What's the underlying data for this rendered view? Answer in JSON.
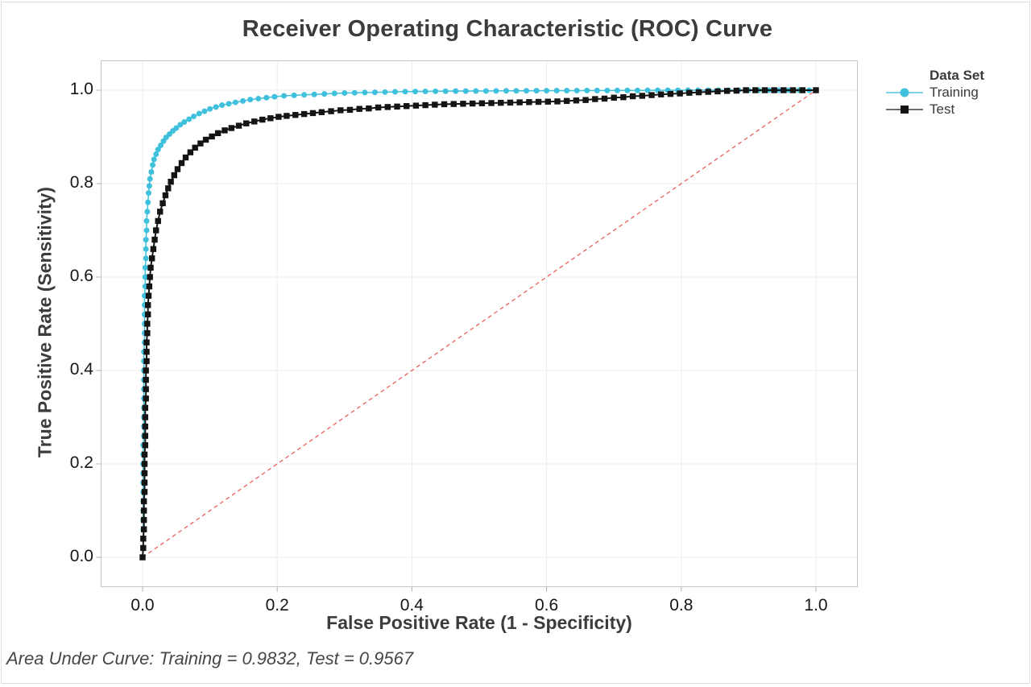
{
  "title": "Receiver Operating Characteristic (ROC) Curve",
  "footer": "Area Under Curve: Training = 0.9832, Test = 0.9567",
  "legend": {
    "title": "Data Set",
    "items": [
      {
        "label": "Training",
        "marker": "circle",
        "color": "#3fc0dd",
        "line_color": "#7fd4e8"
      },
      {
        "label": "Test",
        "marker": "square",
        "color": "#141414",
        "line_color": "#6e6e6e"
      }
    ]
  },
  "chart_data": {
    "type": "line",
    "title": "Receiver Operating Characteristic (ROC) Curve",
    "xlabel": "False Positive Rate (1 - Specificity)",
    "ylabel": "True Positive Rate (Sensitivity)",
    "xlim": [
      0,
      1
    ],
    "ylim": [
      0,
      1
    ],
    "grid": true,
    "legend_position": "right-top",
    "ticks": [
      0,
      0.2,
      0.4,
      0.6,
      0.8,
      1
    ],
    "x_tick_labels": [
      "0.0",
      "0.2",
      "0.4",
      "0.6",
      "0.8",
      "1.0"
    ],
    "y_tick_labels": [
      "0.0",
      "0.2",
      "0.4",
      "0.6",
      "0.8",
      "1.0"
    ],
    "colors": {
      "grid": "#ececec",
      "frame": "#c6c6c6",
      "tick": "#b0b0b0",
      "background": "#ffffff"
    },
    "reference_line": {
      "type": "diagonal",
      "style": "dashed",
      "color": "#ea5550",
      "from": [
        0,
        0
      ],
      "to": [
        1,
        1
      ]
    },
    "series": [
      {
        "name": "Training",
        "marker": "circle",
        "color": "#3fc0dd",
        "auc": 0.9832,
        "points": [
          [
            0,
            0
          ],
          [
            0.001,
            0.02
          ],
          [
            0.001,
            0.04
          ],
          [
            0.001,
            0.06
          ],
          [
            0.001,
            0.08
          ],
          [
            0.001,
            0.1
          ],
          [
            0.001,
            0.12
          ],
          [
            0.001,
            0.14
          ],
          [
            0.001,
            0.16
          ],
          [
            0.001,
            0.18
          ],
          [
            0.001,
            0.2
          ],
          [
            0.001,
            0.22
          ],
          [
            0.001,
            0.24
          ],
          [
            0.002,
            0.26
          ],
          [
            0.002,
            0.28
          ],
          [
            0.002,
            0.3
          ],
          [
            0.002,
            0.32
          ],
          [
            0.002,
            0.34
          ],
          [
            0.002,
            0.36
          ],
          [
            0.002,
            0.38
          ],
          [
            0.002,
            0.4
          ],
          [
            0.002,
            0.42
          ],
          [
            0.002,
            0.44
          ],
          [
            0.003,
            0.46
          ],
          [
            0.003,
            0.48
          ],
          [
            0.003,
            0.5
          ],
          [
            0.003,
            0.52
          ],
          [
            0.003,
            0.54
          ],
          [
            0.003,
            0.56
          ],
          [
            0.004,
            0.58
          ],
          [
            0.004,
            0.6
          ],
          [
            0.004,
            0.62
          ],
          [
            0.005,
            0.64
          ],
          [
            0.005,
            0.66
          ],
          [
            0.005,
            0.68
          ],
          [
            0.006,
            0.7
          ],
          [
            0.006,
            0.72
          ],
          [
            0.007,
            0.74
          ],
          [
            0.008,
            0.76
          ],
          [
            0.009,
            0.78
          ],
          [
            0.01,
            0.795
          ],
          [
            0.011,
            0.81
          ],
          [
            0.013,
            0.825
          ],
          [
            0.015,
            0.84
          ],
          [
            0.017,
            0.852
          ],
          [
            0.02,
            0.863
          ],
          [
            0.023,
            0.873
          ],
          [
            0.027,
            0.882
          ],
          [
            0.031,
            0.891
          ],
          [
            0.035,
            0.899
          ],
          [
            0.04,
            0.906
          ],
          [
            0.045,
            0.913
          ],
          [
            0.05,
            0.919
          ],
          [
            0.056,
            0.926
          ],
          [
            0.062,
            0.932
          ],
          [
            0.069,
            0.938
          ],
          [
            0.076,
            0.944
          ],
          [
            0.084,
            0.95
          ],
          [
            0.092,
            0.955
          ],
          [
            0.1,
            0.96
          ],
          [
            0.109,
            0.964
          ],
          [
            0.118,
            0.968
          ],
          [
            0.128,
            0.971
          ],
          [
            0.138,
            0.974
          ],
          [
            0.149,
            0.977
          ],
          [
            0.16,
            0.98
          ],
          [
            0.172,
            0.982
          ],
          [
            0.184,
            0.984
          ],
          [
            0.196,
            0.986
          ],
          [
            0.21,
            0.988
          ],
          [
            0.225,
            0.989
          ],
          [
            0.24,
            0.99
          ],
          [
            0.255,
            0.991
          ],
          [
            0.27,
            0.992
          ],
          [
            0.285,
            0.993
          ],
          [
            0.3,
            0.994
          ],
          [
            0.315,
            0.9945
          ],
          [
            0.33,
            0.995
          ],
          [
            0.345,
            0.9955
          ],
          [
            0.36,
            0.996
          ],
          [
            0.375,
            0.9965
          ],
          [
            0.39,
            0.997
          ],
          [
            0.405,
            0.9972
          ],
          [
            0.42,
            0.9974
          ],
          [
            0.435,
            0.9976
          ],
          [
            0.45,
            0.9978
          ],
          [
            0.465,
            0.998
          ],
          [
            0.48,
            0.9981
          ],
          [
            0.495,
            0.9982
          ],
          [
            0.51,
            0.9983
          ],
          [
            0.525,
            0.9984
          ],
          [
            0.54,
            0.9986
          ],
          [
            0.555,
            0.9987
          ],
          [
            0.57,
            0.9988
          ],
          [
            0.585,
            0.9989
          ],
          [
            0.6,
            0.999
          ],
          [
            0.615,
            0.9991
          ],
          [
            0.63,
            0.9992
          ],
          [
            0.645,
            0.9992
          ],
          [
            0.66,
            0.9993
          ],
          [
            0.675,
            0.9994
          ],
          [
            0.69,
            0.9994
          ],
          [
            0.705,
            0.9995
          ],
          [
            0.72,
            0.9996
          ],
          [
            0.735,
            0.9996
          ],
          [
            0.75,
            0.9997
          ],
          [
            0.765,
            0.9997
          ],
          [
            0.78,
            0.9998
          ],
          [
            0.795,
            0.9998
          ],
          [
            0.81,
            0.9999
          ],
          [
            0.825,
            0.9999
          ],
          [
            0.84,
            1
          ],
          [
            0.855,
            1
          ],
          [
            0.87,
            1
          ],
          [
            0.885,
            1
          ],
          [
            0.9,
            1
          ],
          [
            0.915,
            1
          ],
          [
            0.93,
            1
          ],
          [
            0.945,
            1
          ],
          [
            0.96,
            1
          ],
          [
            0.975,
            1
          ],
          [
            0.99,
            1
          ],
          [
            1,
            1
          ]
        ]
      },
      {
        "name": "Test",
        "marker": "square",
        "color": "#141414",
        "auc": 0.9567,
        "points": [
          [
            0,
            0
          ],
          [
            0.001,
            0.02
          ],
          [
            0.001,
            0.04
          ],
          [
            0.002,
            0.06
          ],
          [
            0.002,
            0.08
          ],
          [
            0.002,
            0.1
          ],
          [
            0.002,
            0.12
          ],
          [
            0.003,
            0.14
          ],
          [
            0.003,
            0.16
          ],
          [
            0.003,
            0.18
          ],
          [
            0.003,
            0.2
          ],
          [
            0.003,
            0.22
          ],
          [
            0.004,
            0.24
          ],
          [
            0.004,
            0.26
          ],
          [
            0.004,
            0.28
          ],
          [
            0.004,
            0.3
          ],
          [
            0.004,
            0.32
          ],
          [
            0.005,
            0.34
          ],
          [
            0.005,
            0.36
          ],
          [
            0.005,
            0.38
          ],
          [
            0.005,
            0.4
          ],
          [
            0.006,
            0.42
          ],
          [
            0.006,
            0.44
          ],
          [
            0.006,
            0.46
          ],
          [
            0.007,
            0.48
          ],
          [
            0.007,
            0.5
          ],
          [
            0.008,
            0.52
          ],
          [
            0.008,
            0.54
          ],
          [
            0.009,
            0.56
          ],
          [
            0.01,
            0.58
          ],
          [
            0.011,
            0.6
          ],
          [
            0.012,
            0.62
          ],
          [
            0.014,
            0.64
          ],
          [
            0.016,
            0.66
          ],
          [
            0.018,
            0.68
          ],
          [
            0.02,
            0.7
          ],
          [
            0.023,
            0.72
          ],
          [
            0.026,
            0.74
          ],
          [
            0.03,
            0.758
          ],
          [
            0.034,
            0.775
          ],
          [
            0.038,
            0.79
          ],
          [
            0.042,
            0.804
          ],
          [
            0.047,
            0.818
          ],
          [
            0.052,
            0.831
          ],
          [
            0.058,
            0.844
          ],
          [
            0.064,
            0.856
          ],
          [
            0.071,
            0.867
          ],
          [
            0.078,
            0.877
          ],
          [
            0.086,
            0.886
          ],
          [
            0.094,
            0.894
          ],
          [
            0.103,
            0.901
          ],
          [
            0.112,
            0.908
          ],
          [
            0.122,
            0.914
          ],
          [
            0.132,
            0.919
          ],
          [
            0.143,
            0.924
          ],
          [
            0.154,
            0.929
          ],
          [
            0.166,
            0.933
          ],
          [
            0.178,
            0.937
          ],
          [
            0.19,
            0.94
          ],
          [
            0.202,
            0.943
          ],
          [
            0.214,
            0.945
          ],
          [
            0.227,
            0.947
          ],
          [
            0.24,
            0.949
          ],
          [
            0.253,
            0.951
          ],
          [
            0.266,
            0.953
          ],
          [
            0.28,
            0.955
          ],
          [
            0.294,
            0.957
          ],
          [
            0.308,
            0.958
          ],
          [
            0.322,
            0.96
          ],
          [
            0.336,
            0.961
          ],
          [
            0.35,
            0.963
          ],
          [
            0.364,
            0.964
          ],
          [
            0.378,
            0.965
          ],
          [
            0.392,
            0.966
          ],
          [
            0.406,
            0.967
          ],
          [
            0.42,
            0.968
          ],
          [
            0.434,
            0.969
          ],
          [
            0.448,
            0.97
          ],
          [
            0.462,
            0.9705
          ],
          [
            0.476,
            0.971
          ],
          [
            0.49,
            0.9715
          ],
          [
            0.504,
            0.972
          ],
          [
            0.518,
            0.9725
          ],
          [
            0.532,
            0.973
          ],
          [
            0.546,
            0.9735
          ],
          [
            0.56,
            0.974
          ],
          [
            0.574,
            0.9745
          ],
          [
            0.588,
            0.975
          ],
          [
            0.602,
            0.9755
          ],
          [
            0.616,
            0.976
          ],
          [
            0.63,
            0.977
          ],
          [
            0.644,
            0.978
          ],
          [
            0.658,
            0.979
          ],
          [
            0.672,
            0.981
          ],
          [
            0.686,
            0.982
          ],
          [
            0.7,
            0.984
          ],
          [
            0.714,
            0.985
          ],
          [
            0.728,
            0.987
          ],
          [
            0.742,
            0.988
          ],
          [
            0.756,
            0.9895
          ],
          [
            0.77,
            0.991
          ],
          [
            0.784,
            0.992
          ],
          [
            0.798,
            0.993
          ],
          [
            0.812,
            0.9945
          ],
          [
            0.826,
            0.9955
          ],
          [
            0.84,
            0.9965
          ],
          [
            0.854,
            0.9975
          ],
          [
            0.868,
            0.9985
          ],
          [
            0.882,
            0.999
          ],
          [
            0.896,
            1
          ],
          [
            0.91,
            1
          ],
          [
            0.924,
            1
          ],
          [
            0.938,
            1
          ],
          [
            0.952,
            1
          ],
          [
            0.966,
            1
          ],
          [
            0.98,
            1
          ],
          [
            1,
            1
          ]
        ]
      }
    ]
  }
}
